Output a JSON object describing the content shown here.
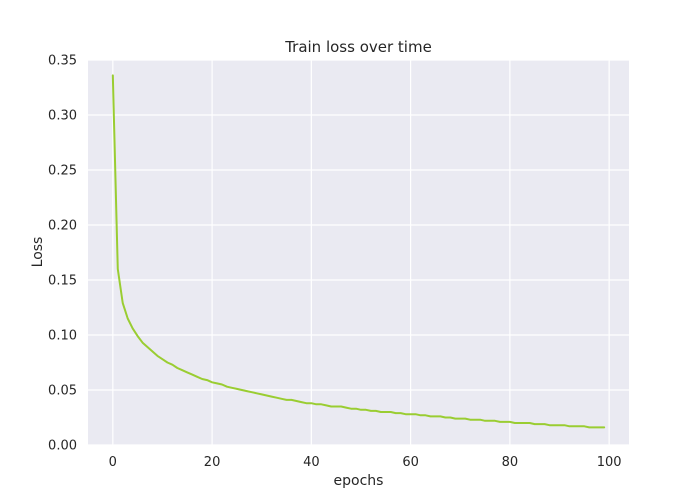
{
  "chart_data": {
    "type": "line",
    "title": "Train loss over time",
    "xlabel": "epochs",
    "ylabel": "Loss",
    "xlim": [
      -5,
      104
    ],
    "ylim": [
      0,
      0.35
    ],
    "xticks": [
      0,
      20,
      40,
      60,
      80,
      100
    ],
    "yticks": [
      0.0,
      0.05,
      0.1,
      0.15,
      0.2,
      0.25,
      0.3,
      0.35
    ],
    "xtick_labels": [
      "0",
      "20",
      "40",
      "60",
      "80",
      "100"
    ],
    "ytick_labels": [
      "0.00",
      "0.05",
      "0.10",
      "0.15",
      "0.20",
      "0.25",
      "0.30",
      "0.35"
    ],
    "grid": true,
    "background_color": "#EAEAF2",
    "grid_color": "#FFFFFF",
    "series": [
      {
        "color": "#9ACD32",
        "x": [
          0,
          1,
          2,
          3,
          4,
          5,
          6,
          7,
          8,
          9,
          10,
          11,
          12,
          13,
          14,
          15,
          16,
          17,
          18,
          19,
          20,
          21,
          22,
          23,
          24,
          25,
          26,
          27,
          28,
          29,
          30,
          31,
          32,
          33,
          34,
          35,
          36,
          37,
          38,
          39,
          40,
          41,
          42,
          43,
          44,
          45,
          46,
          47,
          48,
          49,
          50,
          51,
          52,
          53,
          54,
          55,
          56,
          57,
          58,
          59,
          60,
          61,
          62,
          63,
          64,
          65,
          66,
          67,
          68,
          69,
          70,
          71,
          72,
          73,
          74,
          75,
          76,
          77,
          78,
          79,
          80,
          81,
          82,
          83,
          84,
          85,
          86,
          87,
          88,
          89,
          90,
          91,
          92,
          93,
          94,
          95,
          96,
          97,
          98,
          99
        ],
        "values": [
          0.336,
          0.16,
          0.129,
          0.115,
          0.106,
          0.099,
          0.093,
          0.089,
          0.085,
          0.081,
          0.078,
          0.075,
          0.073,
          0.07,
          0.068,
          0.066,
          0.064,
          0.062,
          0.06,
          0.059,
          0.057,
          0.056,
          0.055,
          0.053,
          0.052,
          0.051,
          0.05,
          0.049,
          0.048,
          0.047,
          0.046,
          0.045,
          0.044,
          0.043,
          0.042,
          0.041,
          0.041,
          0.04,
          0.039,
          0.038,
          0.038,
          0.037,
          0.037,
          0.036,
          0.035,
          0.035,
          0.035,
          0.034,
          0.033,
          0.033,
          0.032,
          0.032,
          0.031,
          0.031,
          0.03,
          0.03,
          0.03,
          0.029,
          0.029,
          0.028,
          0.028,
          0.028,
          0.027,
          0.027,
          0.026,
          0.026,
          0.026,
          0.025,
          0.025,
          0.024,
          0.024,
          0.024,
          0.023,
          0.023,
          0.023,
          0.022,
          0.022,
          0.022,
          0.021,
          0.021,
          0.021,
          0.02,
          0.02,
          0.02,
          0.02,
          0.019,
          0.019,
          0.019,
          0.018,
          0.018,
          0.018,
          0.018,
          0.017,
          0.017,
          0.017,
          0.017,
          0.016,
          0.016,
          0.016,
          0.016
        ]
      }
    ]
  }
}
